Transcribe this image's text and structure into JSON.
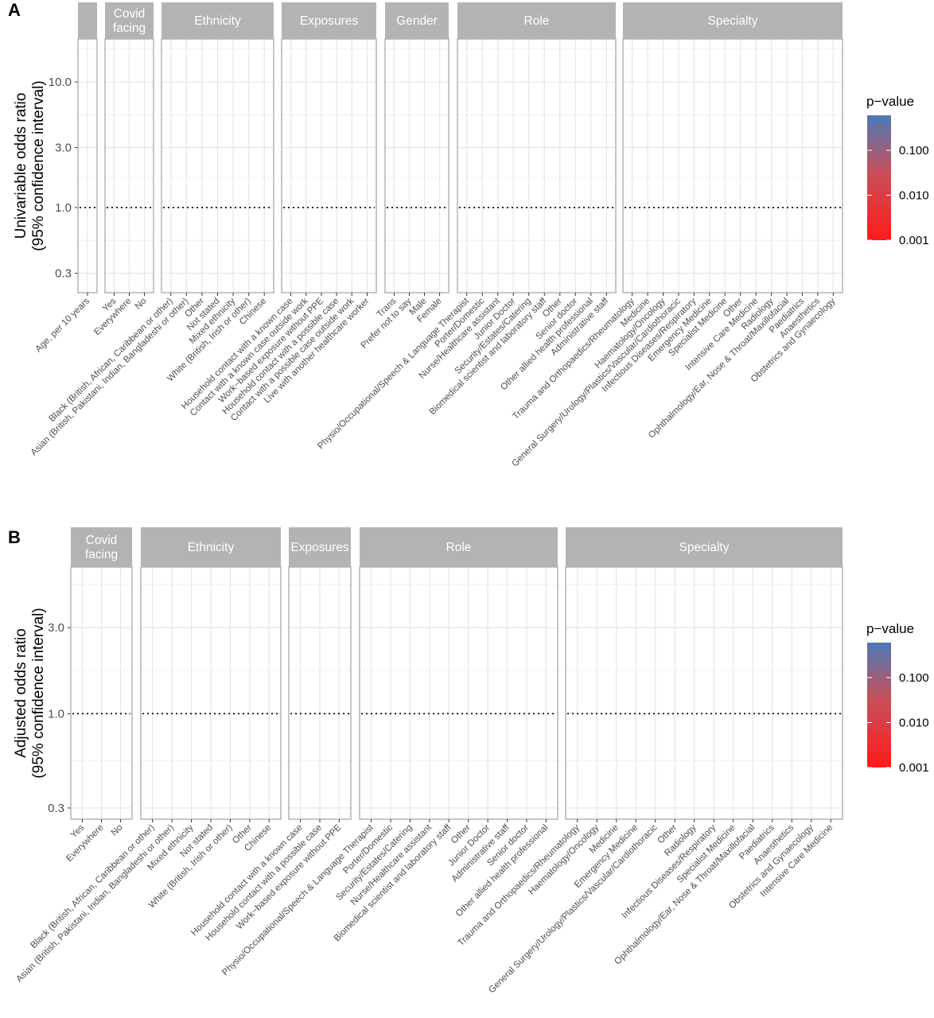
{
  "chart_data": [
    {
      "panel_label": "A",
      "type": "scatter",
      "ylabel": "Univariable odds ratio\n(95% confidence interval)",
      "y_scale": "log10",
      "ylim": [
        0.21,
        22
      ],
      "y_ticks": [
        {
          "value": 0.3,
          "label": "0.3"
        },
        {
          "value": 1.0,
          "label": "1.0"
        },
        {
          "value": 3.0,
          "label": "3.0"
        },
        {
          "value": 10.0,
          "label": "10.0"
        }
      ],
      "reference_line": 1.0,
      "grid": true,
      "legend": {
        "title": "p−value",
        "placement": "right",
        "ticks": [
          {
            "value": 0.1,
            "label": "0.100"
          },
          {
            "value": 0.01,
            "label": "0.010"
          },
          {
            "value": 0.001,
            "label": "0.001"
          }
        ],
        "color_low": "#ff1a1a",
        "color_high": "#4a7ab8"
      },
      "facets": [
        {
          "strip": "",
          "categories": [
            "Age, per 10 years"
          ]
        },
        {
          "strip": "Covid\nfacing",
          "categories": [
            "Yes",
            "Everywhere",
            "No"
          ]
        },
        {
          "strip": "Ethnicity",
          "categories": [
            "Black (British, African, Caribbean or other)",
            "Asian (British, Pakistani, Indian, Bangladeshi or other)",
            "Other",
            "Not stated",
            "Mixed ethnicity",
            "White (British, Irish or other)",
            "Chinese"
          ]
        },
        {
          "strip": "Exposures",
          "categories": [
            "Household contact with a known case",
            "Contact with a known case outside work",
            "Work−based exposure without PPE",
            "Household contact with a possible case",
            "Contact with a possible case outside work",
            "Live with another healthcare worker"
          ]
        },
        {
          "strip": "Gender",
          "categories": [
            "Trans",
            "Prefer not to say",
            "Male",
            "Female"
          ]
        },
        {
          "strip": "Role",
          "categories": [
            "Physio/Occupational/Speech & Language Therapist",
            "Porter/Domestic",
            "Nurse/Healthcare assistant",
            "Junior Doctor",
            "Security/Estates/Catering",
            "Biomedical scientist and laboratory staff",
            "Other",
            "Senior doctor",
            "Other allied health professional",
            "Administrative staff"
          ]
        },
        {
          "strip": "Specialty",
          "categories": [
            "Trauma and Orthopaedics/Rheumatology",
            "Medicine",
            "Haematology/Oncology",
            "General Surgery/Urology/Plastics/Vascular/Cardiothoracic",
            "Infectious Diseases/Respiratory",
            "Emergency Medicine",
            "Specialist Medicine",
            "Other",
            "Intensive Care Medicine",
            "Radiology",
            "Ophthalmology/Ear, Nose & Throat/Maxillofacial",
            "Paediatrics",
            "Anaesthetics",
            "Obstetrics and Gynaecology"
          ]
        }
      ]
    },
    {
      "panel_label": "B",
      "type": "scatter",
      "ylabel": "Adjusted odds ratio\n(95% confidence interval)",
      "y_scale": "log10",
      "ylim": [
        0.26,
        6.5
      ],
      "y_ticks": [
        {
          "value": 0.3,
          "label": "0.3"
        },
        {
          "value": 1.0,
          "label": "1.0"
        },
        {
          "value": 3.0,
          "label": "3.0"
        }
      ],
      "reference_line": 1.0,
      "grid": true,
      "legend": {
        "title": "p−value",
        "placement": "right",
        "ticks": [
          {
            "value": 0.1,
            "label": "0.100"
          },
          {
            "value": 0.01,
            "label": "0.010"
          },
          {
            "value": 0.001,
            "label": "0.001"
          }
        ],
        "color_low": "#ff1a1a",
        "color_high": "#4a7ab8"
      },
      "facets": [
        {
          "strip": "Covid\nfacing",
          "categories": [
            "Yes",
            "Everywhere",
            "No"
          ]
        },
        {
          "strip": "Ethnicity",
          "categories": [
            "Black (British, African, Caribbean or other)",
            "Asian (British, Pakistani, Indian, Bangladeshi or other)",
            "Mixed ethnicity",
            "Not stated",
            "White (British, Irish or other)",
            "Other",
            "Chinese"
          ]
        },
        {
          "strip": "Exposures",
          "categories": [
            "Household contact with a known case",
            "Household contact with a possible case",
            "Work−based exposure without PPE"
          ]
        },
        {
          "strip": "Role",
          "categories": [
            "Physio/Occupational/Speech & Language Therapist",
            "Porter/Domestic",
            "Security/Estates/Catering",
            "Nurse/Healthcare assistant",
            "Biomedical scientist and laboratory staff",
            "Other",
            "Junior Doctor",
            "Administrative staff",
            "Senior doctor",
            "Other allied health professional"
          ]
        },
        {
          "strip": "Specialty",
          "categories": [
            "Trauma and Orthopaedics/Rheumatology",
            "Haematology/Oncology",
            "Medicine",
            "Emergency Medicine",
            "General Surgery/Urology/Plastics/Vascular/Cardiothoracic",
            "Other",
            "Radiology",
            "Infectious Diseases/Respiratory",
            "Specialist Medicine",
            "Ophthalmology/Ear, Nose & Throat/Maxillofacial",
            "Paediatrics",
            "Anaesthetics",
            "Obstetrics and Gynaecology",
            "Intensive Care Medicine"
          ]
        }
      ]
    }
  ]
}
